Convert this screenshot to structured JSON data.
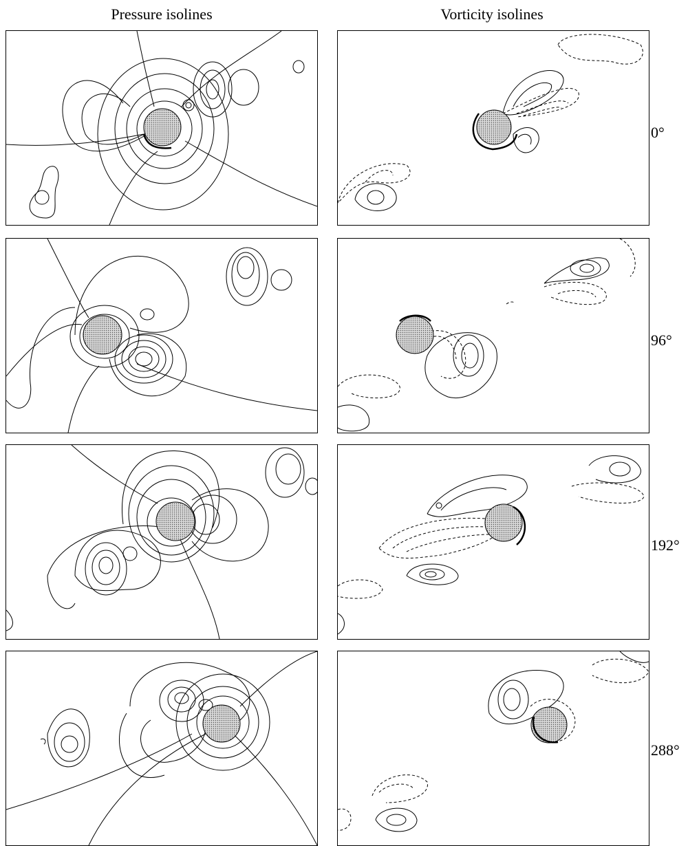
{
  "columns": {
    "pressure_title": "Pressure isolines",
    "vorticity_title": "Vorticity isolines"
  },
  "rows": [
    {
      "angle": "0°"
    },
    {
      "angle": "96°"
    },
    {
      "angle": "192°"
    },
    {
      "angle": "288°"
    }
  ]
}
